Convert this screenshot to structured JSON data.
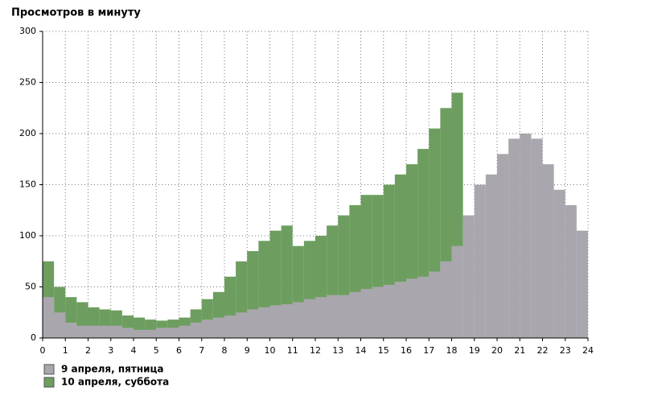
{
  "chart_data": {
    "type": "bar",
    "title": "Просмотров в минуту",
    "x": [
      0,
      0.5,
      1,
      1.5,
      2,
      2.5,
      3,
      3.5,
      4,
      4.5,
      5,
      5.5,
      6,
      6.5,
      7,
      7.5,
      8,
      8.5,
      9,
      9.5,
      10,
      10.5,
      11,
      11.5,
      12,
      12.5,
      13,
      13.5,
      14,
      14.5,
      15,
      15.5,
      16,
      16.5,
      17,
      17.5,
      18,
      18.5,
      19,
      19.5,
      20,
      20.5,
      21,
      21.5,
      22,
      22.5,
      23,
      23.5
    ],
    "series": [
      {
        "name": "9 апреля, пятница",
        "color": "#a9a7ad",
        "values": [
          40,
          25,
          15,
          12,
          12,
          12,
          12,
          10,
          8,
          8,
          10,
          10,
          12,
          15,
          18,
          20,
          22,
          25,
          28,
          30,
          32,
          33,
          35,
          38,
          40,
          42,
          42,
          45,
          48,
          50,
          52,
          55,
          58,
          60,
          65,
          75,
          90,
          120,
          150,
          160,
          180,
          195,
          200,
          195,
          170,
          145,
          130,
          105
        ]
      },
      {
        "name": "10 апреля, суббота",
        "color": "#6d9e5f",
        "values": [
          75,
          50,
          40,
          35,
          30,
          28,
          27,
          22,
          20,
          18,
          17,
          18,
          20,
          28,
          38,
          45,
          60,
          75,
          85,
          95,
          105,
          110,
          90,
          95,
          100,
          110,
          120,
          130,
          140,
          140,
          150,
          160,
          170,
          185,
          205,
          225,
          240,
          null,
          null,
          null,
          null,
          null,
          null,
          null,
          null,
          null,
          null,
          null
        ]
      }
    ],
    "xlim": [
      0,
      24
    ],
    "xticks": [
      0,
      1,
      2,
      3,
      4,
      5,
      6,
      7,
      8,
      9,
      10,
      11,
      12,
      13,
      14,
      15,
      16,
      17,
      18,
      19,
      20,
      21,
      22,
      23,
      24
    ],
    "ylim": [
      0,
      300
    ],
    "yticks": [
      0,
      50,
      100,
      150,
      200,
      250,
      300
    ],
    "grid": true
  }
}
